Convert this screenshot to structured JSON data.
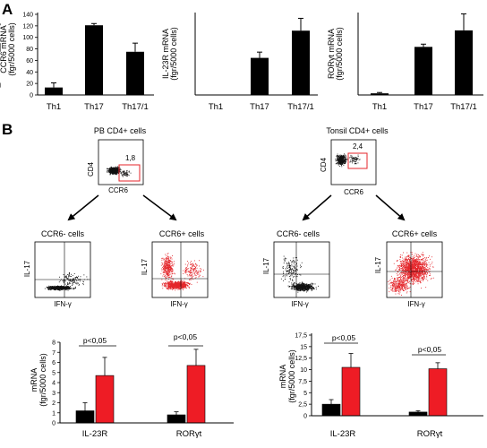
{
  "panel_labels": {
    "a": "A",
    "b": "B"
  },
  "panel_a_charts": [
    {
      "id": "ccr6",
      "ylabel_line1": "CCR6 mRNA",
      "ylabel_line2": "(fgr/5000 cells)",
      "yticks": [
        "0",
        "20",
        "40",
        "60",
        "80",
        "100",
        "120",
        "140"
      ],
      "ymax": 140
    },
    {
      "id": "il23r",
      "ylabel_line1": "IL-23R mRNA",
      "ylabel_line2": "(fgr/5000 cells)",
      "yticks": [],
      "ymax": 100
    },
    {
      "id": "rorgt",
      "ylabel_line1": "RORγt mRNA",
      "ylabel_line2": "(fgr/5000 cells)",
      "yticks": [],
      "ymax": 300
    }
  ],
  "flow": {
    "pb_title": "PB CD4+ cells",
    "tonsil_title": "Tonsil CD4+ cells",
    "pb_gate_pct": "1,8",
    "tonsil_gate_pct": "2,4",
    "axis_cd4": "CD4",
    "axis_ccr6": "CCR6",
    "axis_il17": "IL-17",
    "axis_ifng": "IFN-γ",
    "ccr6_neg": "CCR6- cells",
    "ccr6_pos": "CCR6+ cells",
    "gate_color": "#e4262b",
    "neg_dot_color": "#111111",
    "pos_dot_color": "#e4262b"
  },
  "panel_b_bars": [
    {
      "id": "pb",
      "ylabel_line1": "mRNA",
      "ylabel_line2": "(fgr/5000 cells)",
      "yticks": [
        "0",
        "1",
        "2",
        "3",
        "4",
        "5",
        "6",
        "7",
        "8"
      ],
      "ymax": 8,
      "pvalues": [
        "p<0,05",
        "p<0,05"
      ]
    },
    {
      "id": "tonsil",
      "ylabel_line1": "mRNA",
      "ylabel_line2": "(fgr/5000 cells)",
      "yticks": [
        "0",
        "2,5",
        "5",
        "7,5",
        "10",
        "12,5",
        "15",
        "17,5"
      ],
      "ymax": 17.5,
      "pvalues": [
        "p<0,05",
        "p<0,05"
      ]
    }
  ],
  "chart_data": [
    {
      "type": "bar",
      "categories": [
        "Th1",
        "Th17",
        "Th17/1"
      ],
      "values": [
        13,
        121,
        75
      ],
      "errors": [
        8,
        3,
        15
      ],
      "ylabel": "CCR6 mRNA (fgr/5000 cells)",
      "ylim": [
        0,
        140
      ]
    },
    {
      "type": "bar",
      "categories": [
        "Th1",
        "Th17",
        "Th17/1"
      ],
      "values": [
        0.5,
        45,
        78
      ],
      "errors": [
        0,
        7,
        15
      ],
      "ylabel": "IL-23R mRNA (fgr/5000 cells)",
      "ylim": [
        0,
        100
      ]
    },
    {
      "type": "bar",
      "categories": [
        "Th1",
        "Th17",
        "Th17/1"
      ],
      "values": [
        6,
        175,
        235
      ],
      "errors": [
        3,
        10,
        60
      ],
      "ylabel": "RORγt mRNA (fgr/5000 cells)",
      "ylim": [
        0,
        300
      ]
    },
    {
      "type": "bar",
      "categories": [
        "IL-23R",
        "RORγt"
      ],
      "series": [
        {
          "values": [
            1.2,
            0.8
          ],
          "errors": [
            0.8,
            0.3
          ],
          "color": "#000000"
        },
        {
          "values": [
            4.7,
            5.7
          ],
          "errors": [
            1.8,
            1.6
          ],
          "color": "#ee1c25"
        }
      ],
      "ylabel": "mRNA (fgr/5000 cells)",
      "ylim": [
        0,
        8
      ]
    },
    {
      "type": "bar",
      "categories": [
        "IL-23R",
        "RORγt"
      ],
      "series": [
        {
          "values": [
            2.5,
            0.8
          ],
          "errors": [
            1.0,
            0.3
          ],
          "color": "#000000"
        },
        {
          "values": [
            10.5,
            10.2
          ],
          "errors": [
            3.0,
            1.3
          ],
          "color": "#ee1c25"
        }
      ],
      "ylabel": "mRNA (fgr/5000 cells)",
      "ylim": [
        0,
        17.5
      ]
    }
  ]
}
